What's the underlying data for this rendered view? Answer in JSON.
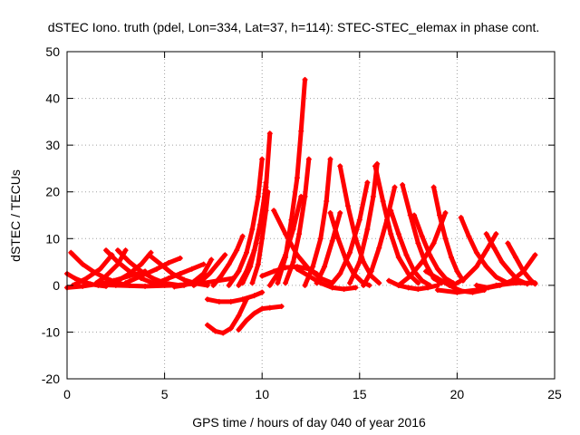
{
  "chart_data": {
    "type": "scatter",
    "title": "dSTEC Iono. truth (pdel, Lon=334, Lat=37, h=114): STEC-STEC_elemax in phase cont.",
    "xlabel": "GPS time / hours of day 040 of year 2016",
    "ylabel": "dSTEC  / TECUs",
    "xlim": [
      0,
      25
    ],
    "ylim": [
      -20,
      50
    ],
    "x_ticks": [
      0,
      5,
      10,
      15,
      20,
      25
    ],
    "y_ticks": [
      -20,
      -10,
      0,
      10,
      20,
      30,
      40,
      50
    ],
    "x_tick_labels": [
      "0",
      "5",
      "10",
      "15",
      "20",
      "25"
    ],
    "y_tick_labels": [
      "-20",
      "-10",
      "0",
      "10",
      "20",
      "30",
      "40",
      "50"
    ],
    "grid": true,
    "marker": "+",
    "color": "#ff0000",
    "series": [
      {
        "x": [
          0.0,
          0.4,
          0.8,
          1.2,
          1.6,
          2.0
        ],
        "y": [
          2.5,
          1.5,
          0.8,
          0.3,
          0.0,
          -0.2
        ]
      },
      {
        "x": [
          0.2,
          0.8,
          1.4,
          2.0,
          2.6,
          3.2
        ],
        "y": [
          7.0,
          4.5,
          2.8,
          1.5,
          0.5,
          0.0
        ]
      },
      {
        "x": [
          0.0,
          0.8,
          1.6,
          2.4,
          3.2,
          4.0
        ],
        "y": [
          -0.5,
          -0.2,
          0.3,
          1.0,
          2.0,
          3.0
        ]
      },
      {
        "x": [
          0.3,
          1.0,
          1.7,
          2.3
        ],
        "y": [
          0.0,
          1.5,
          3.5,
          6.5
        ]
      },
      {
        "x": [
          2.0,
          2.6,
          3.2,
          3.8,
          4.4,
          5.0
        ],
        "y": [
          7.5,
          5.0,
          3.0,
          1.5,
          0.5,
          0.0
        ]
      },
      {
        "x": [
          1.5,
          2.0,
          2.6,
          3.0
        ],
        "y": [
          0.5,
          2.0,
          4.5,
          7.5
        ]
      },
      {
        "x": [
          2.6,
          3.2,
          3.8,
          4.4,
          5.0,
          5.8
        ],
        "y": [
          7.5,
          5.0,
          3.0,
          1.5,
          0.5,
          0.0
        ]
      },
      {
        "x": [
          2.0,
          2.6,
          3.2,
          3.8,
          4.3
        ],
        "y": [
          0.0,
          1.0,
          2.5,
          4.5,
          7.0
        ]
      },
      {
        "x": [
          3.0,
          3.8,
          4.6,
          5.2,
          5.8
        ],
        "y": [
          0.5,
          2.0,
          3.5,
          4.8,
          5.8
        ]
      },
      {
        "x": [
          4.2,
          4.8,
          5.4,
          6.0,
          6.6,
          7.2
        ],
        "y": [
          6.5,
          4.5,
          2.5,
          1.2,
          0.4,
          0.0
        ]
      },
      {
        "x": [
          4.6,
          5.2,
          5.8,
          6.4,
          7.0
        ],
        "y": [
          0.5,
          1.5,
          2.5,
          3.5,
          4.5
        ]
      },
      {
        "x": [
          1.0,
          2.5,
          4.0,
          5.5,
          7.0,
          8.5
        ],
        "y": [
          0.2,
          0.0,
          -0.2,
          0.0,
          0.5,
          1.5
        ]
      },
      {
        "x": [
          5.5,
          6.0,
          6.5,
          7.0,
          7.4
        ],
        "y": [
          -0.3,
          0.0,
          0.8,
          2.5,
          5.5
        ]
      },
      {
        "x": [
          6.5,
          6.9,
          7.3,
          7.7,
          8.1
        ],
        "y": [
          0.0,
          1.0,
          2.5,
          4.5,
          6.5
        ]
      },
      {
        "x": [
          7.2,
          7.6,
          8.0,
          8.4,
          8.8,
          9.2
        ],
        "y": [
          -8.5,
          -9.8,
          -10.2,
          -9.2,
          -6.5,
          -3.0
        ]
      },
      {
        "x": [
          7.2,
          7.8,
          8.4,
          9.0,
          9.6,
          10.0
        ],
        "y": [
          -3.0,
          -3.5,
          -3.5,
          -3.0,
          -2.2,
          -1.5
        ]
      },
      {
        "x": [
          8.8,
          9.2,
          9.6,
          10.0,
          10.4,
          11.0
        ],
        "y": [
          -9.5,
          -7.5,
          -6.0,
          -5.0,
          -4.8,
          -4.5
        ]
      },
      {
        "x": [
          7.5,
          7.9,
          8.3,
          8.7,
          9.0
        ],
        "y": [
          0.0,
          2.0,
          4.5,
          7.5,
          10.5
        ]
      },
      {
        "x": [
          8.3,
          8.8,
          9.2,
          9.5,
          9.8,
          10.0
        ],
        "y": [
          0.0,
          3.0,
          7.0,
          12.0,
          19.0,
          27.0
        ]
      },
      {
        "x": [
          8.8,
          9.2,
          9.6,
          9.9,
          10.2,
          10.4
        ],
        "y": [
          0.0,
          3.0,
          7.5,
          13.0,
          21.0,
          32.5
        ]
      },
      {
        "x": [
          9.0,
          9.4,
          9.7,
          10.0,
          10.2
        ],
        "y": [
          0.5,
          4.0,
          9.0,
          15.0,
          22.0
        ]
      },
      {
        "x": [
          9.5,
          9.8,
          10.0,
          10.2,
          10.3
        ],
        "y": [
          0.5,
          4.5,
          10.0,
          16.0,
          20.0
        ]
      },
      {
        "x": [
          10.0,
          10.6,
          11.2,
          11.8,
          12.4,
          12.8
        ],
        "y": [
          2.0,
          3.0,
          3.8,
          4.0,
          3.5,
          2.5
        ]
      },
      {
        "x": [
          10.4,
          10.8,
          11.2,
          11.6,
          12.0
        ],
        "y": [
          0.0,
          2.5,
          6.5,
          12.0,
          19.0
        ]
      },
      {
        "x": [
          10.8,
          11.2,
          11.5,
          11.8,
          12.0,
          12.2
        ],
        "y": [
          0.5,
          6.0,
          14.0,
          23.0,
          33.0,
          44.0
        ]
      },
      {
        "x": [
          11.2,
          11.6,
          11.9,
          12.2,
          12.4
        ],
        "y": [
          0.5,
          5.0,
          11.0,
          19.0,
          27.0
        ]
      },
      {
        "x": [
          10.6,
          11.2,
          11.8,
          12.4,
          13.0,
          13.6
        ],
        "y": [
          16.0,
          11.0,
          6.5,
          3.5,
          1.5,
          0.5
        ]
      },
      {
        "x": [
          11.8,
          12.4,
          13.0,
          13.6,
          14.2,
          14.8
        ],
        "y": [
          3.5,
          2.0,
          0.5,
          -0.5,
          -0.8,
          -0.5
        ]
      },
      {
        "x": [
          12.2,
          12.6,
          13.0,
          13.3,
          13.5
        ],
        "y": [
          0.0,
          4.0,
          10.0,
          18.0,
          27.0
        ]
      },
      {
        "x": [
          12.8,
          13.2,
          13.6,
          14.0
        ],
        "y": [
          0.5,
          4.0,
          9.5,
          15.5
        ]
      },
      {
        "x": [
          13.5,
          13.9,
          14.3,
          14.7,
          15.1,
          15.5
        ],
        "y": [
          15.5,
          10.0,
          5.5,
          2.5,
          0.8,
          0.0
        ]
      },
      {
        "x": [
          14.0,
          14.4,
          14.8,
          15.2,
          15.6,
          16.0
        ],
        "y": [
          25.5,
          17.0,
          10.0,
          5.0,
          2.0,
          0.5
        ]
      },
      {
        "x": [
          13.5,
          14.0,
          14.5,
          15.0,
          15.4
        ],
        "y": [
          0.0,
          2.5,
          7.0,
          14.0,
          22.0
        ]
      },
      {
        "x": [
          14.5,
          15.0,
          15.4,
          15.7,
          15.9
        ],
        "y": [
          0.5,
          5.0,
          12.0,
          19.0,
          26.0
        ]
      },
      {
        "x": [
          15.2,
          15.6,
          16.0,
          16.4,
          16.8
        ],
        "y": [
          0.0,
          3.0,
          8.0,
          14.0,
          21.0
        ]
      },
      {
        "x": [
          15.8,
          16.2,
          16.6,
          17.0,
          17.5,
          18.0
        ],
        "y": [
          25.5,
          18.0,
          11.0,
          6.0,
          2.5,
          0.5
        ]
      },
      {
        "x": [
          16.6,
          17.0,
          17.4,
          17.8,
          18.2,
          18.6
        ],
        "y": [
          16.0,
          11.0,
          6.5,
          3.0,
          1.0,
          0.0
        ]
      },
      {
        "x": [
          16.5,
          17.0,
          17.5,
          18.0,
          18.5,
          19.0
        ],
        "y": [
          1.0,
          0.0,
          -0.5,
          -0.8,
          -0.5,
          0.0
        ]
      },
      {
        "x": [
          17.2,
          17.6,
          18.0,
          18.4,
          18.8,
          19.2
        ],
        "y": [
          21.5,
          15.0,
          9.0,
          4.5,
          1.5,
          0.5
        ]
      },
      {
        "x": [
          17.8,
          18.2,
          18.6,
          19.0,
          19.4,
          19.8
        ],
        "y": [
          15.0,
          10.5,
          6.5,
          3.5,
          1.5,
          0.5
        ]
      },
      {
        "x": [
          17.0,
          17.6,
          18.2,
          18.8,
          19.4
        ],
        "y": [
          0.0,
          2.0,
          5.0,
          9.0,
          15.5
        ]
      },
      {
        "x": [
          18.8,
          19.1,
          19.4,
          19.7,
          20.0,
          20.3
        ],
        "y": [
          21.0,
          15.0,
          10.0,
          6.0,
          3.0,
          1.0
        ]
      },
      {
        "x": [
          18.4,
          19.0,
          19.6,
          20.2,
          20.8,
          21.4
        ],
        "y": [
          3.0,
          1.5,
          0.0,
          -1.2,
          -1.5,
          -1.0
        ]
      },
      {
        "x": [
          20.2,
          20.6,
          21.0,
          21.5,
          22.0,
          22.6
        ],
        "y": [
          14.5,
          10.5,
          7.0,
          4.0,
          1.8,
          0.5
        ]
      },
      {
        "x": [
          19.8,
          20.4,
          21.0,
          21.5,
          22.0
        ],
        "y": [
          0.0,
          1.5,
          4.0,
          7.5,
          11.0
        ]
      },
      {
        "x": [
          21.5,
          21.9,
          22.3,
          22.7,
          23.1,
          23.6
        ],
        "y": [
          11.0,
          8.0,
          5.0,
          3.0,
          1.2,
          0.3
        ]
      },
      {
        "x": [
          22.6,
          23.0,
          23.4,
          23.8,
          24.0
        ],
        "y": [
          9.0,
          6.0,
          3.0,
          1.0,
          0.3
        ]
      },
      {
        "x": [
          21.0,
          21.6,
          22.2,
          22.8,
          23.4,
          24.0
        ],
        "y": [
          0.0,
          -0.5,
          0.0,
          1.0,
          3.0,
          6.5
        ]
      },
      {
        "x": [
          19.0,
          20.0,
          21.0,
          22.0,
          23.0,
          24.0
        ],
        "y": [
          -1.0,
          -1.5,
          -1.0,
          0.0,
          0.5,
          0.5
        ]
      }
    ]
  }
}
